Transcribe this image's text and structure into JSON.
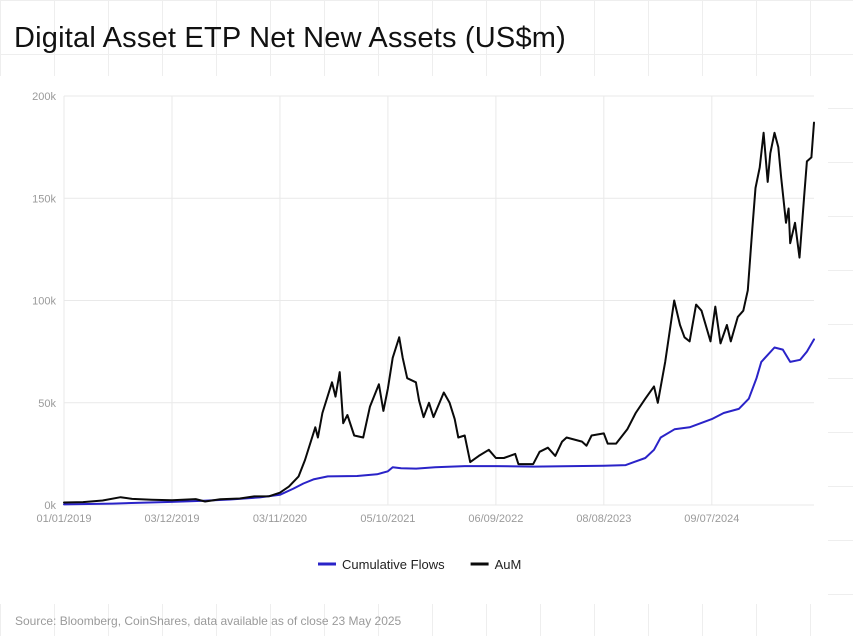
{
  "chart_title": "Digital Asset ETP Net New Assets (US$m)",
  "source_note": "Source: Bloomberg, CoinShares, data available as of close 23 May 2025",
  "chart_data": {
    "type": "line",
    "title": "Digital Asset ETP Net New Assets (US$m)",
    "xlabel": "",
    "ylabel": "",
    "ylim": [
      0,
      200000
    ],
    "y_ticks": [
      0,
      50000,
      100000,
      150000,
      200000
    ],
    "y_tick_labels": [
      "0k",
      "50k",
      "100k",
      "150k",
      "200k"
    ],
    "x_ticks": [
      "2019-01-01",
      "2019-12-03",
      "2020-11-03",
      "2021-10-05",
      "2022-09-06",
      "2023-08-08",
      "2024-07-09"
    ],
    "x_tick_labels": [
      "01/01/2019",
      "03/12/2019",
      "03/11/2020",
      "05/10/2021",
      "06/09/2022",
      "08/08/2023",
      "09/07/2024"
    ],
    "x_range": [
      "2019-01-01",
      "2025-05-23"
    ],
    "grid": true,
    "legend_position": "bottom-center",
    "series": [
      {
        "name": "Cumulative Flows",
        "color": "#2a23c8",
        "points": [
          [
            "2019-01-01",
            300
          ],
          [
            "2019-06-01",
            700
          ],
          [
            "2019-12-03",
            1500
          ],
          [
            "2020-03-01",
            2000
          ],
          [
            "2020-06-01",
            2700
          ],
          [
            "2020-09-01",
            3700
          ],
          [
            "2020-11-03",
            5000
          ],
          [
            "2020-12-15",
            8000
          ],
          [
            "2021-01-15",
            10500
          ],
          [
            "2021-02-15",
            12500
          ],
          [
            "2021-04-01",
            14000
          ],
          [
            "2021-07-01",
            14200
          ],
          [
            "2021-09-01",
            15000
          ],
          [
            "2021-10-05",
            16500
          ],
          [
            "2021-10-20",
            18500
          ],
          [
            "2021-11-15",
            18000
          ],
          [
            "2022-01-01",
            17800
          ],
          [
            "2022-03-01",
            18500
          ],
          [
            "2022-06-01",
            19000
          ],
          [
            "2022-09-06",
            19000
          ],
          [
            "2023-01-01",
            18800
          ],
          [
            "2023-04-01",
            18900
          ],
          [
            "2023-08-08",
            19200
          ],
          [
            "2023-10-15",
            19500
          ],
          [
            "2023-12-15",
            23000
          ],
          [
            "2024-01-11",
            27000
          ],
          [
            "2024-02-01",
            33000
          ],
          [
            "2024-03-15",
            37000
          ],
          [
            "2024-05-01",
            38000
          ],
          [
            "2024-07-09",
            42000
          ],
          [
            "2024-08-15",
            45000
          ],
          [
            "2024-10-01",
            47000
          ],
          [
            "2024-11-01",
            52000
          ],
          [
            "2024-11-25",
            62000
          ],
          [
            "2024-12-10",
            70000
          ],
          [
            "2025-01-20",
            77000
          ],
          [
            "2025-02-15",
            76000
          ],
          [
            "2025-03-10",
            70000
          ],
          [
            "2025-04-10",
            71000
          ],
          [
            "2025-05-01",
            75000
          ],
          [
            "2025-05-23",
            81000
          ]
        ]
      },
      {
        "name": "AuM",
        "color": "#0a0a0a",
        "points": [
          [
            "2019-01-01",
            1200
          ],
          [
            "2019-03-01",
            1400
          ],
          [
            "2019-05-01",
            2200
          ],
          [
            "2019-06-26",
            3800
          ],
          [
            "2019-08-01",
            3000
          ],
          [
            "2019-10-01",
            2600
          ],
          [
            "2019-12-03",
            2300
          ],
          [
            "2020-02-15",
            2900
          ],
          [
            "2020-03-15",
            1700
          ],
          [
            "2020-05-01",
            2800
          ],
          [
            "2020-07-01",
            3200
          ],
          [
            "2020-08-15",
            4200
          ],
          [
            "2020-10-01",
            4300
          ],
          [
            "2020-11-03",
            6000
          ],
          [
            "2020-12-01",
            9000
          ],
          [
            "2020-12-31",
            14000
          ],
          [
            "2021-01-20",
            22000
          ],
          [
            "2021-02-21",
            38000
          ],
          [
            "2021-03-01",
            33000
          ],
          [
            "2021-03-15",
            45000
          ],
          [
            "2021-04-14",
            60000
          ],
          [
            "2021-04-25",
            53000
          ],
          [
            "2021-05-08",
            65000
          ],
          [
            "2021-05-19",
            40000
          ],
          [
            "2021-06-01",
            44000
          ],
          [
            "2021-06-22",
            34000
          ],
          [
            "2021-07-20",
            33000
          ],
          [
            "2021-08-10",
            48000
          ],
          [
            "2021-09-07",
            59000
          ],
          [
            "2021-09-21",
            46000
          ],
          [
            "2021-10-05",
            57000
          ],
          [
            "2021-10-20",
            72000
          ],
          [
            "2021-11-09",
            82000
          ],
          [
            "2021-11-20",
            72000
          ],
          [
            "2021-12-04",
            62000
          ],
          [
            "2021-12-31",
            60000
          ],
          [
            "2022-01-10",
            51000
          ],
          [
            "2022-01-24",
            43000
          ],
          [
            "2022-02-10",
            50000
          ],
          [
            "2022-02-24",
            43000
          ],
          [
            "2022-03-28",
            55000
          ],
          [
            "2022-04-15",
            50000
          ],
          [
            "2022-05-01",
            42000
          ],
          [
            "2022-05-12",
            33000
          ],
          [
            "2022-06-01",
            34000
          ],
          [
            "2022-06-18",
            21000
          ],
          [
            "2022-07-15",
            24000
          ],
          [
            "2022-08-15",
            27000
          ],
          [
            "2022-09-06",
            23000
          ],
          [
            "2022-10-01",
            23000
          ],
          [
            "2022-11-05",
            25000
          ],
          [
            "2022-11-15",
            20000
          ],
          [
            "2022-12-31",
            20000
          ],
          [
            "2023-01-20",
            26000
          ],
          [
            "2023-02-15",
            28000
          ],
          [
            "2023-03-10",
            24000
          ],
          [
            "2023-03-31",
            31000
          ],
          [
            "2023-04-14",
            33000
          ],
          [
            "2023-06-01",
            31000
          ],
          [
            "2023-06-15",
            29000
          ],
          [
            "2023-07-01",
            34000
          ],
          [
            "2023-08-08",
            35000
          ],
          [
            "2023-08-20",
            30000
          ],
          [
            "2023-09-15",
            30000
          ],
          [
            "2023-10-20",
            37000
          ],
          [
            "2023-11-15",
            45000
          ],
          [
            "2023-12-15",
            52000
          ],
          [
            "2024-01-11",
            58000
          ],
          [
            "2024-01-23",
            50000
          ],
          [
            "2024-02-15",
            70000
          ],
          [
            "2024-03-14",
            100000
          ],
          [
            "2024-04-01",
            88000
          ],
          [
            "2024-04-15",
            82000
          ],
          [
            "2024-05-01",
            80000
          ],
          [
            "2024-05-21",
            98000
          ],
          [
            "2024-06-07",
            95000
          ],
          [
            "2024-07-05",
            80000
          ],
          [
            "2024-07-20",
            97000
          ],
          [
            "2024-08-05",
            79000
          ],
          [
            "2024-08-25",
            88000
          ],
          [
            "2024-09-06",
            80000
          ],
          [
            "2024-09-28",
            92000
          ],
          [
            "2024-10-15",
            95000
          ],
          [
            "2024-10-29",
            105000
          ],
          [
            "2024-11-12",
            135000
          ],
          [
            "2024-11-22",
            155000
          ],
          [
            "2024-12-05",
            165000
          ],
          [
            "2024-12-17",
            182000
          ],
          [
            "2024-12-30",
            158000
          ],
          [
            "2025-01-07",
            172000
          ],
          [
            "2025-01-20",
            182000
          ],
          [
            "2025-02-01",
            175000
          ],
          [
            "2025-02-10",
            160000
          ],
          [
            "2025-02-25",
            138000
          ],
          [
            "2025-03-05",
            145000
          ],
          [
            "2025-03-10",
            128000
          ],
          [
            "2025-03-25",
            138000
          ],
          [
            "2025-04-08",
            121000
          ],
          [
            "2025-04-22",
            150000
          ],
          [
            "2025-05-01",
            168000
          ],
          [
            "2025-05-15",
            170000
          ],
          [
            "2025-05-23",
            187000
          ]
        ]
      }
    ]
  }
}
